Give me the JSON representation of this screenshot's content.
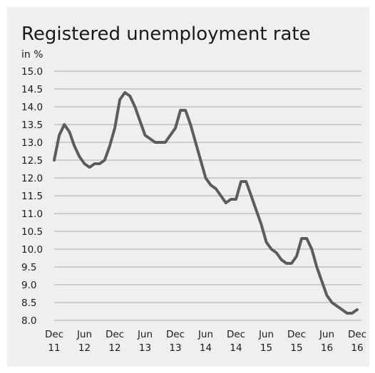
{
  "chart_data": {
    "type": "line",
    "title": "Registered unemployment rate",
    "ylabel": "in %",
    "xlabel": "",
    "ylim": [
      8.0,
      15.0
    ],
    "yticks": [
      "15.0",
      "14.5",
      "14.0",
      "13.5",
      "13.0",
      "12.5",
      "12.0",
      "11.5",
      "11.0",
      "10.5",
      "10.0",
      "9.5",
      "9.0",
      "8.5",
      "8.0"
    ],
    "xticks": [
      {
        "month": "Dec",
        "year": "11"
      },
      {
        "month": "Jun",
        "year": "12"
      },
      {
        "month": "Dec",
        "year": "12"
      },
      {
        "month": "Jun",
        "year": "13"
      },
      {
        "month": "Dec",
        "year": "13"
      },
      {
        "month": "Jun",
        "year": "14"
      },
      {
        "month": "Dec",
        "year": "14"
      },
      {
        "month": "Jun",
        "year": "15"
      },
      {
        "month": "Dec",
        "year": "15"
      },
      {
        "month": "Jun",
        "year": "16"
      },
      {
        "month": "Dec",
        "year": "16"
      }
    ],
    "grid": true,
    "legend": "none",
    "line_color": "#5c5c5c",
    "series": [
      {
        "x_start": "Dec 2011",
        "x_end": "Dec 2016",
        "values": [
          12.5,
          13.2,
          13.5,
          13.3,
          12.9,
          12.6,
          12.4,
          12.3,
          12.4,
          12.4,
          12.5,
          12.9,
          13.4,
          14.2,
          14.4,
          14.3,
          14.0,
          13.6,
          13.2,
          13.1,
          13.0,
          13.0,
          13.0,
          13.2,
          13.4,
          13.9,
          13.9,
          13.5,
          13.0,
          12.5,
          12.0,
          11.8,
          11.7,
          11.5,
          11.3,
          11.4,
          11.4,
          11.9,
          11.9,
          11.5,
          11.1,
          10.7,
          10.2,
          10.0,
          9.9,
          9.7,
          9.6,
          9.6,
          9.8,
          10.3,
          10.3,
          10.0,
          9.5,
          9.1,
          8.7,
          8.5,
          8.4,
          8.3,
          8.2,
          8.2,
          8.3
        ]
      }
    ]
  }
}
